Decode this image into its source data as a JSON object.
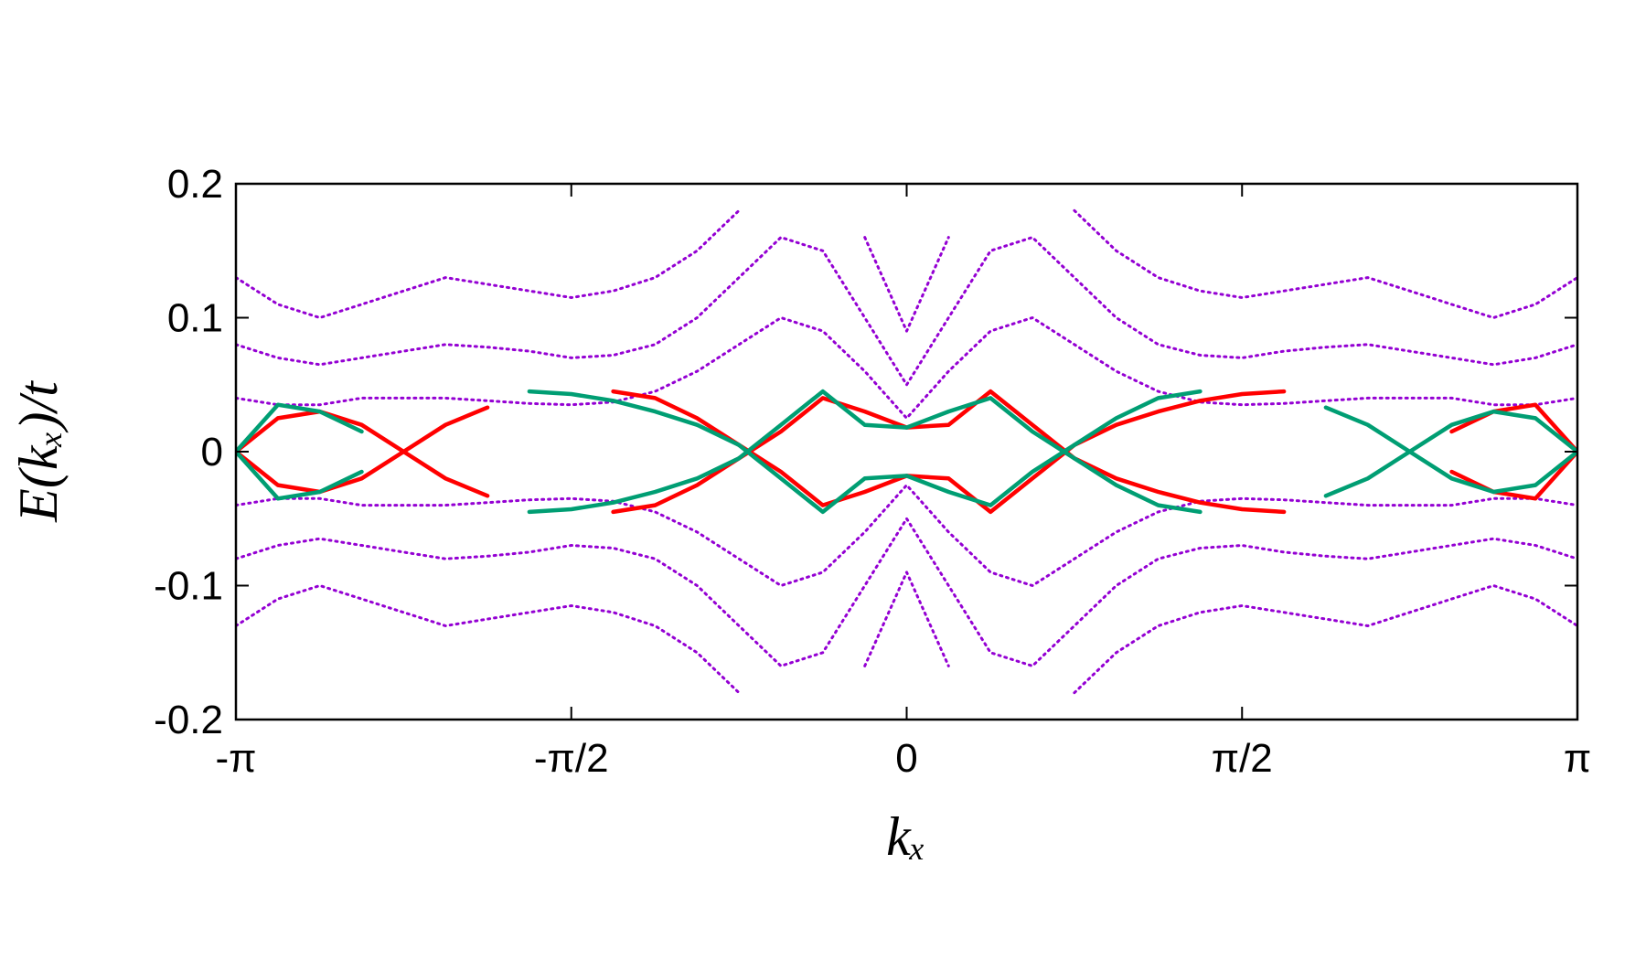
{
  "chart_data": {
    "type": "line",
    "xlabel": "kₓ",
    "ylabel": "E(kₓ)/t",
    "x": [
      -3.1416,
      -2.9452,
      -2.7489,
      -2.5525,
      -2.3562,
      -2.1598,
      -1.9635,
      -1.7671,
      -1.5708,
      -1.3744,
      -1.1781,
      -0.9817,
      -0.7854,
      -0.589,
      -0.3927,
      -0.1963,
      0,
      0.1963,
      0.3927,
      0.589,
      0.7854,
      0.9817,
      1.1781,
      1.3744,
      1.5708,
      1.7671,
      1.9635,
      2.1598,
      2.3562,
      2.5525,
      2.7489,
      2.9452,
      3.1416
    ],
    "xlim": [
      -3.1416,
      3.1416
    ],
    "xticks": [
      {
        "value": -3.1416,
        "label": "-π"
      },
      {
        "value": -1.5708,
        "label": "-π/2"
      },
      0,
      {
        "value": 1.5708,
        "label": "π/2"
      },
      {
        "value": 3.1416,
        "label": "π"
      }
    ],
    "ylim": [
      -0.2,
      0.2
    ],
    "yticks": [
      -0.2,
      -0.1,
      0,
      0.1,
      0.2
    ],
    "series": [
      {
        "color": "#9400d3",
        "style": "dotted",
        "values": [
          0.04,
          0.035,
          0.035,
          0.04,
          0.04,
          0.04,
          0.038,
          0.036,
          0.035,
          0.037,
          0.045,
          0.06,
          0.08,
          0.1,
          0.09,
          0.06,
          0.025,
          0.06,
          0.09,
          0.1,
          0.08,
          0.06,
          0.045,
          0.037,
          0.035,
          0.036,
          0.038,
          0.04,
          0.04,
          0.04,
          0.035,
          0.035,
          0.04
        ]
      },
      {
        "color": "#9400d3",
        "style": "dotted",
        "values": [
          0.08,
          0.07,
          0.065,
          0.07,
          0.075,
          0.08,
          0.078,
          0.075,
          0.07,
          0.072,
          0.08,
          0.1,
          0.13,
          0.16,
          0.15,
          0.1,
          0.05,
          0.1,
          0.15,
          0.16,
          0.13,
          0.1,
          0.08,
          0.072,
          0.07,
          0.075,
          0.078,
          0.08,
          0.075,
          0.07,
          0.065,
          0.07,
          0.08
        ]
      },
      {
        "color": "#9400d3",
        "style": "dotted",
        "values": [
          0.13,
          0.11,
          0.1,
          0.11,
          0.12,
          0.13,
          0.125,
          0.12,
          0.115,
          0.12,
          0.13,
          0.15,
          0.18,
          null,
          null,
          0.16,
          0.09,
          0.16,
          null,
          null,
          0.18,
          0.15,
          0.13,
          0.12,
          0.115,
          0.12,
          0.125,
          0.13,
          0.12,
          0.11,
          0.1,
          0.11,
          0.13
        ]
      },
      {
        "color": "#9400d3",
        "style": "dotted",
        "values": [
          -0.04,
          -0.035,
          -0.035,
          -0.04,
          -0.04,
          -0.04,
          -0.038,
          -0.036,
          -0.035,
          -0.037,
          -0.045,
          -0.06,
          -0.08,
          -0.1,
          -0.09,
          -0.06,
          -0.025,
          -0.06,
          -0.09,
          -0.1,
          -0.08,
          -0.06,
          -0.045,
          -0.037,
          -0.035,
          -0.036,
          -0.038,
          -0.04,
          -0.04,
          -0.04,
          -0.035,
          -0.035,
          -0.04
        ]
      },
      {
        "color": "#9400d3",
        "style": "dotted",
        "values": [
          -0.08,
          -0.07,
          -0.065,
          -0.07,
          -0.075,
          -0.08,
          -0.078,
          -0.075,
          -0.07,
          -0.072,
          -0.08,
          -0.1,
          -0.13,
          -0.16,
          -0.15,
          -0.1,
          -0.05,
          -0.1,
          -0.15,
          -0.16,
          -0.13,
          -0.1,
          -0.08,
          -0.072,
          -0.07,
          -0.075,
          -0.078,
          -0.08,
          -0.075,
          -0.07,
          -0.065,
          -0.07,
          -0.08
        ]
      },
      {
        "color": "#9400d3",
        "style": "dotted",
        "values": [
          -0.13,
          -0.11,
          -0.1,
          -0.11,
          -0.12,
          -0.13,
          -0.125,
          -0.12,
          -0.115,
          -0.12,
          -0.13,
          -0.15,
          -0.18,
          null,
          null,
          -0.16,
          -0.09,
          -0.16,
          null,
          null,
          -0.18,
          -0.15,
          -0.13,
          -0.12,
          -0.115,
          -0.12,
          -0.125,
          -0.13,
          -0.12,
          -0.11,
          -0.1,
          -0.11,
          -0.13
        ]
      },
      {
        "color": "#ff0000",
        "style": "solid",
        "values": [
          0,
          -0.025,
          -0.03,
          -0.02,
          0,
          0.02,
          0.033,
          null,
          null,
          -0.045,
          -0.04,
          -0.025,
          -0.005,
          0.015,
          0.04,
          0.03,
          0.018,
          0.02,
          0.045,
          0.02,
          -0.005,
          -0.02,
          -0.03,
          -0.038,
          -0.043,
          -0.045,
          null,
          null,
          null,
          0.015,
          0.03,
          0.035,
          0
        ]
      },
      {
        "color": "#ff0000",
        "style": "solid",
        "values": [
          0,
          0.025,
          0.03,
          0.02,
          0,
          -0.02,
          -0.033,
          null,
          null,
          0.045,
          0.04,
          0.025,
          0.005,
          -0.015,
          -0.04,
          -0.03,
          -0.018,
          -0.02,
          -0.045,
          -0.02,
          0.005,
          0.02,
          0.03,
          0.038,
          0.043,
          0.045,
          null,
          null,
          null,
          -0.015,
          -0.03,
          -0.035,
          0
        ]
      },
      {
        "color": "#009e73",
        "style": "solid",
        "values": [
          0,
          0.035,
          0.03,
          0.015,
          null,
          null,
          null,
          -0.045,
          -0.043,
          -0.038,
          -0.03,
          -0.02,
          -0.005,
          0.02,
          0.045,
          0.02,
          0.018,
          0.03,
          0.04,
          0.015,
          -0.005,
          -0.025,
          -0.04,
          -0.045,
          null,
          null,
          0.033,
          0.02,
          0,
          -0.02,
          -0.03,
          -0.025,
          0
        ]
      },
      {
        "color": "#009e73",
        "style": "solid",
        "values": [
          0,
          -0.035,
          -0.03,
          -0.015,
          null,
          null,
          null,
          0.045,
          0.043,
          0.038,
          0.03,
          0.02,
          0.005,
          -0.02,
          -0.045,
          -0.02,
          -0.018,
          -0.03,
          -0.04,
          -0.015,
          0.005,
          0.025,
          0.04,
          0.045,
          null,
          null,
          -0.033,
          -0.02,
          0,
          0.02,
          0.03,
          0.025,
          0
        ]
      }
    ]
  }
}
